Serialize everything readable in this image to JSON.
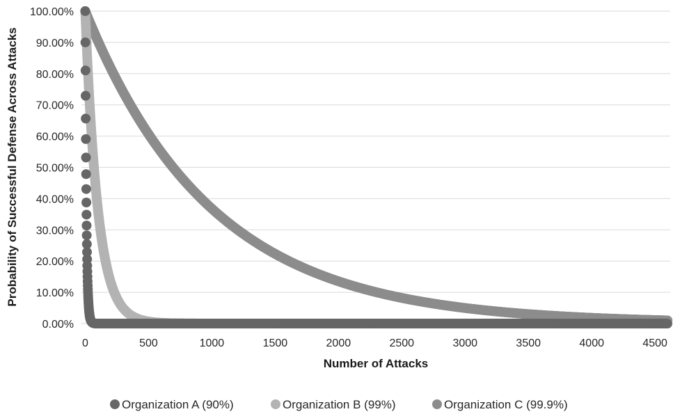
{
  "chart_data": {
    "type": "scatter",
    "title": "",
    "xlabel": "Number of Attacks",
    "ylabel": "Probability of Successful Defense Across Attacks",
    "xlim": [
      -30,
      4620
    ],
    "ylim": [
      0,
      1
    ],
    "x_ticks": [
      0,
      500,
      1000,
      1500,
      2000,
      2500,
      3000,
      3500,
      4000,
      4500
    ],
    "x_tick_labels": [
      "0",
      "500",
      "1000",
      "1500",
      "2000",
      "2500",
      "3000",
      "3500",
      "4000",
      "4500"
    ],
    "y_ticks": [
      0,
      0.1,
      0.2,
      0.3,
      0.4,
      0.5,
      0.6,
      0.7,
      0.8,
      0.9,
      1.0
    ],
    "y_tick_labels": [
      "0.00%",
      "10.00%",
      "20.00%",
      "30.00%",
      "40.00%",
      "50.00%",
      "60.00%",
      "70.00%",
      "80.00%",
      "90.00%",
      "100.00%"
    ],
    "grid": "horizontal",
    "legend_position": "bottom",
    "series": [
      {
        "name": "Organization A (90%)",
        "color": "#666666",
        "model": "probability = 0.9^x",
        "per_attack_success": 0.9,
        "x_range": [
          0,
          4620
        ],
        "y_range": [
          0,
          1
        ]
      },
      {
        "name": "Organization B (99%)",
        "color": "#b3b3b3",
        "model": "probability = 0.99^x",
        "per_attack_success": 0.99,
        "x_range": [
          0,
          4620
        ],
        "y_range": [
          0,
          1
        ]
      },
      {
        "name": "Organization C (99.9%)",
        "color": "#8c8c8c",
        "model": "probability = 0.999^x",
        "per_attack_success": 0.999,
        "x_range": [
          0,
          4620
        ],
        "y_range": [
          0.01,
          1
        ]
      }
    ]
  }
}
